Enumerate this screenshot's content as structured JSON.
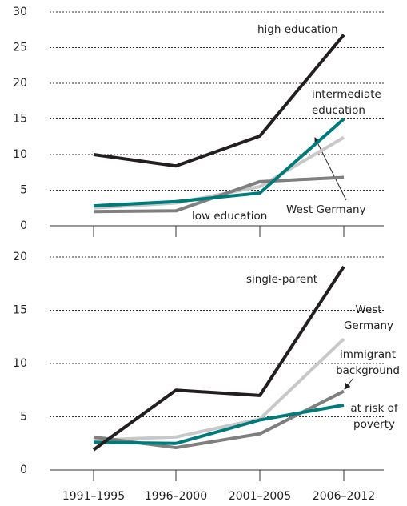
{
  "chart_data": [
    {
      "type": "line",
      "categories": [
        null,
        null,
        null,
        null
      ],
      "ylim": [
        0,
        30
      ],
      "yticks": [
        0,
        5,
        10,
        15,
        20,
        25,
        30
      ],
      "grid": true,
      "series": [
        {
          "name": "West Germany",
          "color": "#c8c8c8",
          "values": [
            2.5,
            3.2,
            5.5,
            12.4
          ]
        },
        {
          "name": "low education",
          "color": "#7f7f7f",
          "values": [
            2.0,
            2.1,
            6.2,
            6.8
          ]
        },
        {
          "name": "intermediate education",
          "color": "#007b7b",
          "values": [
            2.8,
            3.4,
            4.6,
            15.0
          ]
        },
        {
          "name": "high education",
          "color": "#231f20",
          "values": [
            10.0,
            8.4,
            12.6,
            26.8
          ]
        }
      ]
    },
    {
      "type": "line",
      "categories": [
        "1991–1995",
        "1996–2000",
        "2001–2005",
        "2006–2012"
      ],
      "ylim": [
        0,
        20
      ],
      "yticks": [
        0,
        5,
        10,
        15,
        20
      ],
      "grid": true,
      "series": [
        {
          "name": "West Germany",
          "color": "#c8c8c8",
          "values": [
            2.8,
            3.1,
            4.8,
            12.3
          ]
        },
        {
          "name": "immigrant background",
          "color": "#7f7f7f",
          "values": [
            3.1,
            2.1,
            3.4,
            7.4
          ]
        },
        {
          "name": "at risk of poverty",
          "color": "#007b7b",
          "values": [
            2.6,
            2.5,
            4.7,
            6.1
          ]
        },
        {
          "name": "single-parent",
          "color": "#231f20",
          "values": [
            1.9,
            7.5,
            7.0,
            19.1
          ]
        }
      ]
    }
  ]
}
